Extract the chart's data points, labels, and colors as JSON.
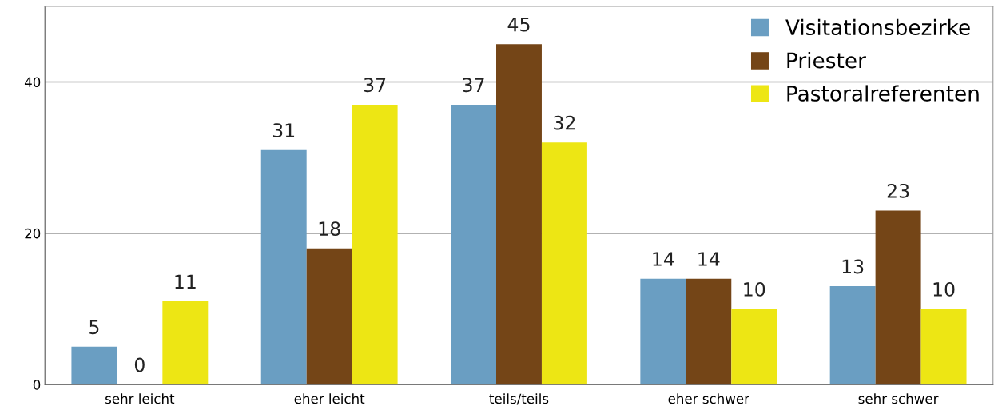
{
  "chart_data": {
    "type": "bar",
    "categories": [
      "sehr leicht",
      "eher leicht",
      "teils/teils",
      "eher schwer",
      "sehr schwer"
    ],
    "series": [
      {
        "name": "Visitationsbezirke",
        "color": "#6a9ec2",
        "values": [
          5,
          31,
          37,
          14,
          13
        ]
      },
      {
        "name": "Priester",
        "color": "#744517",
        "values": [
          0,
          18,
          45,
          14,
          23
        ]
      },
      {
        "name": "Pastoralreferenten",
        "color": "#ede614",
        "values": [
          11,
          37,
          32,
          10,
          10
        ]
      }
    ],
    "ylim": [
      0,
      50
    ],
    "yticks": [
      0,
      20,
      40
    ],
    "grid": "y",
    "legend": "top right",
    "data_labels": true
  }
}
